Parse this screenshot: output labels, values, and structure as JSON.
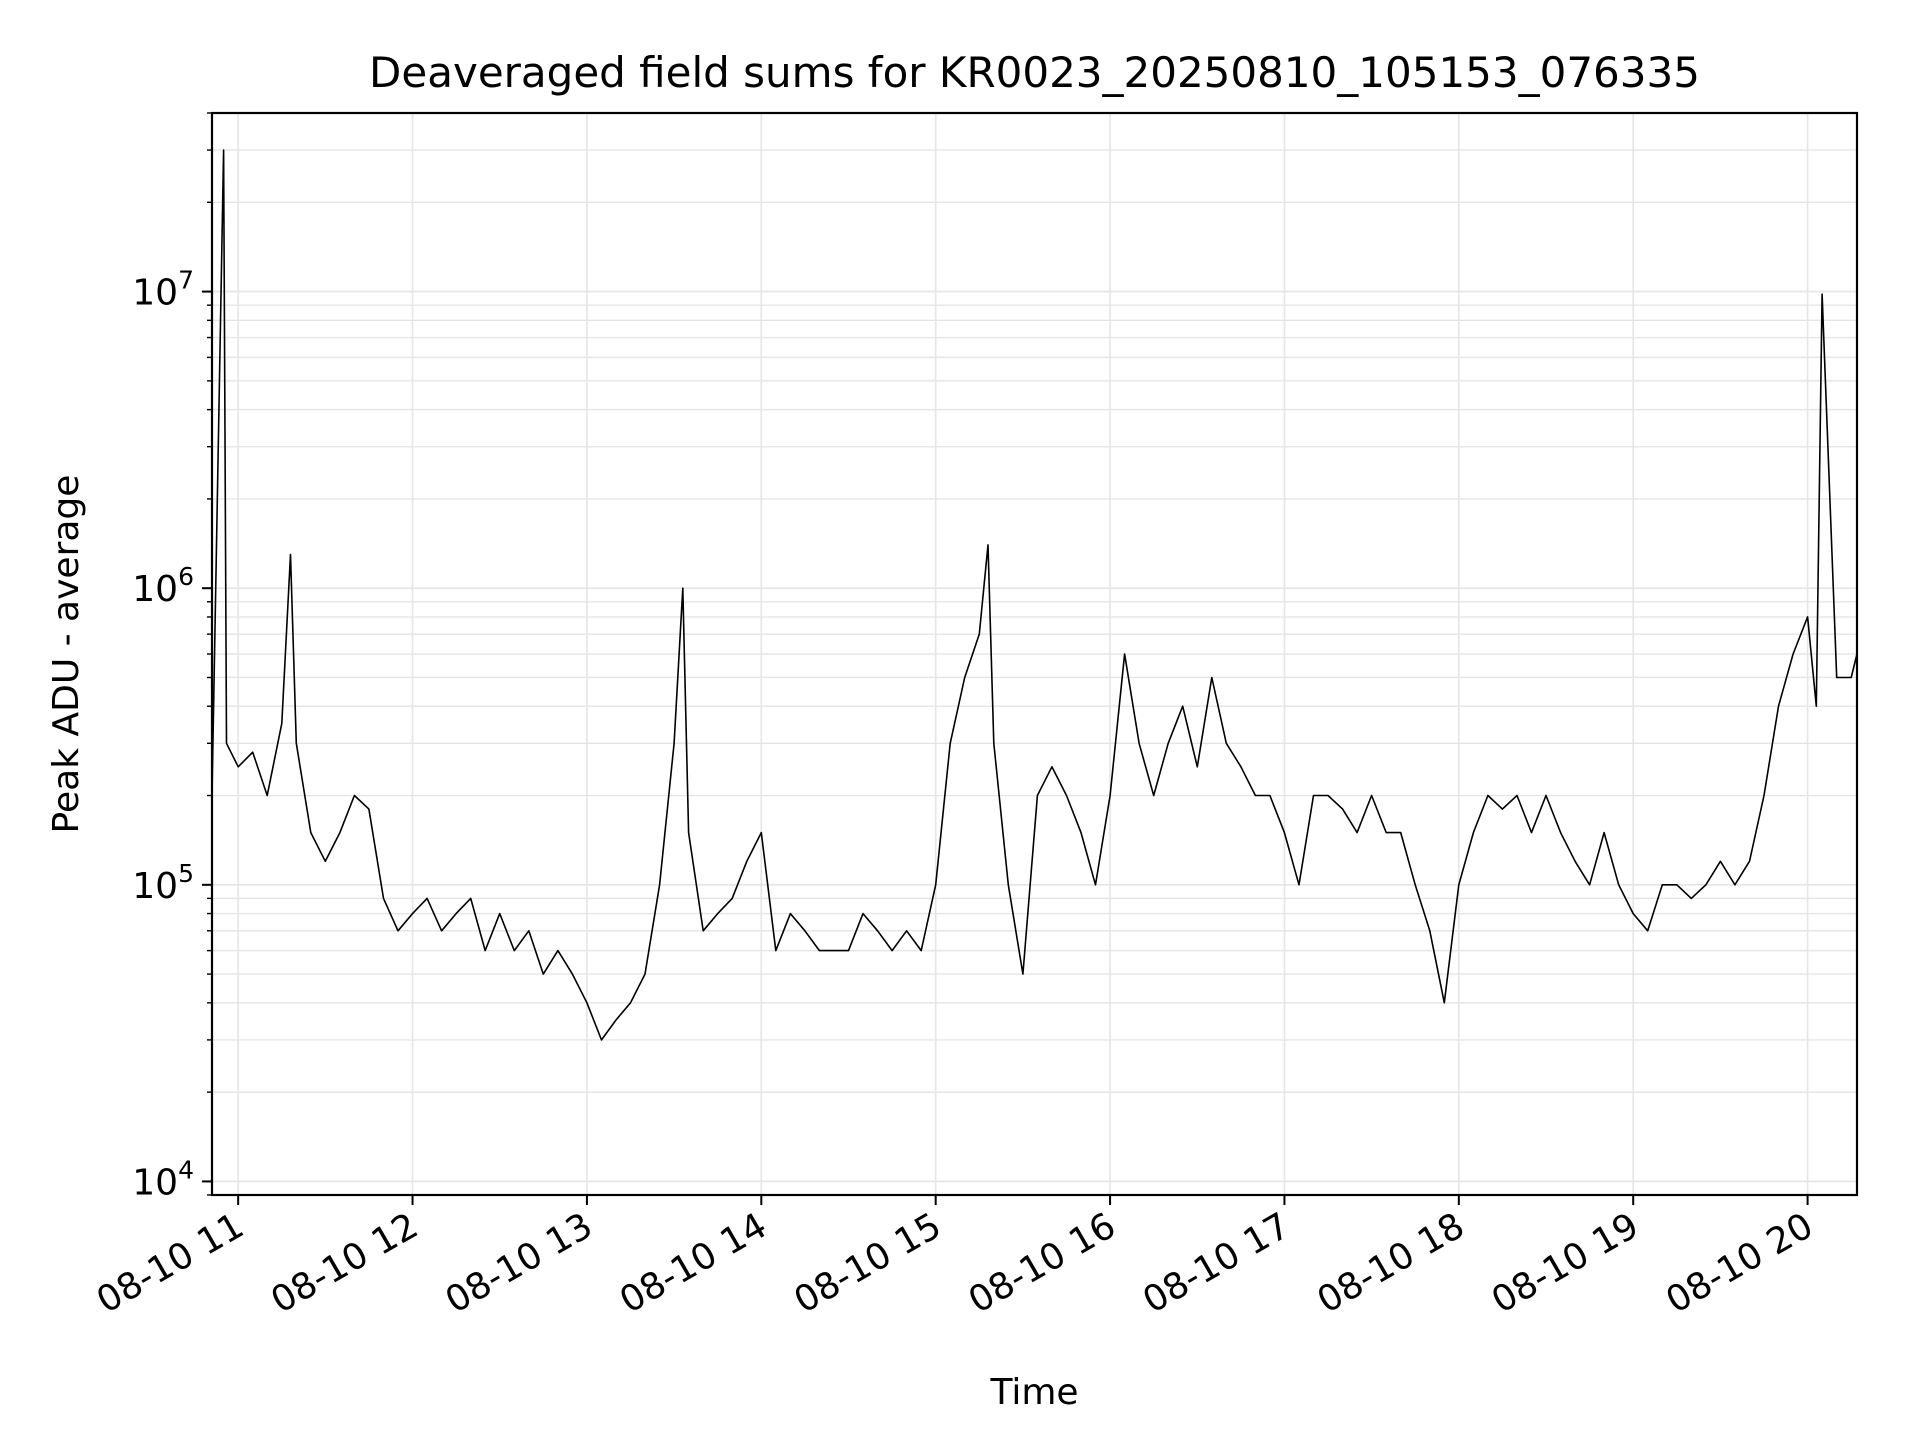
{
  "chart_data": {
    "type": "line",
    "title": "Deaveraged field sums for KR0023_20250810_105153_076335",
    "xlabel": "Time",
    "ylabel": "Peak ADU - average",
    "xlim": [
      "2025-08-10 10:51",
      "2025-08-10 20:17"
    ],
    "xticks": [
      "08-10 11",
      "08-10 12",
      "08-10 13",
      "08-10 14",
      "08-10 15",
      "08-10 16",
      "08-10 17",
      "08-10 18",
      "08-10 19",
      "08-10 20"
    ],
    "yscale": "log",
    "ylim": [
      9000,
      40000000
    ],
    "yticks": [
      {
        "base": "10",
        "exp": "4",
        "value": 10000
      },
      {
        "base": "10",
        "exp": "5",
        "value": 100000
      },
      {
        "base": "10",
        "exp": "6",
        "value": 1000000
      },
      {
        "base": "10",
        "exp": "7",
        "value": 10000000
      }
    ],
    "grid": true,
    "line_color": "#000000",
    "grid_color": "#e5e5e5",
    "series": [
      {
        "x": [
          "2025-08-10 10:51",
          "2025-08-10 10:55",
          "2025-08-10 10:56",
          "2025-08-10 11:00",
          "2025-08-10 11:05",
          "2025-08-10 11:10",
          "2025-08-10 11:15",
          "2025-08-10 11:18",
          "2025-08-10 11:20",
          "2025-08-10 11:25",
          "2025-08-10 11:30",
          "2025-08-10 11:35",
          "2025-08-10 11:40",
          "2025-08-10 11:45",
          "2025-08-10 11:50",
          "2025-08-10 11:55",
          "2025-08-10 12:00",
          "2025-08-10 12:05",
          "2025-08-10 12:10",
          "2025-08-10 12:15",
          "2025-08-10 12:20",
          "2025-08-10 12:25",
          "2025-08-10 12:30",
          "2025-08-10 12:35",
          "2025-08-10 12:40",
          "2025-08-10 12:45",
          "2025-08-10 12:50",
          "2025-08-10 12:55",
          "2025-08-10 13:00",
          "2025-08-10 13:05",
          "2025-08-10 13:10",
          "2025-08-10 13:15",
          "2025-08-10 13:20",
          "2025-08-10 13:25",
          "2025-08-10 13:30",
          "2025-08-10 13:33",
          "2025-08-10 13:35",
          "2025-08-10 13:40",
          "2025-08-10 13:45",
          "2025-08-10 13:50",
          "2025-08-10 13:55",
          "2025-08-10 14:00",
          "2025-08-10 14:05",
          "2025-08-10 14:10",
          "2025-08-10 14:15",
          "2025-08-10 14:20",
          "2025-08-10 14:25",
          "2025-08-10 14:30",
          "2025-08-10 14:35",
          "2025-08-10 14:40",
          "2025-08-10 14:45",
          "2025-08-10 14:50",
          "2025-08-10 14:55",
          "2025-08-10 15:00",
          "2025-08-10 15:05",
          "2025-08-10 15:10",
          "2025-08-10 15:15",
          "2025-08-10 15:18",
          "2025-08-10 15:20",
          "2025-08-10 15:25",
          "2025-08-10 15:30",
          "2025-08-10 15:35",
          "2025-08-10 15:40",
          "2025-08-10 15:45",
          "2025-08-10 15:50",
          "2025-08-10 15:55",
          "2025-08-10 16:00",
          "2025-08-10 16:05",
          "2025-08-10 16:10",
          "2025-08-10 16:15",
          "2025-08-10 16:20",
          "2025-08-10 16:25",
          "2025-08-10 16:30",
          "2025-08-10 16:35",
          "2025-08-10 16:40",
          "2025-08-10 16:45",
          "2025-08-10 16:50",
          "2025-08-10 16:55",
          "2025-08-10 17:00",
          "2025-08-10 17:05",
          "2025-08-10 17:10",
          "2025-08-10 17:15",
          "2025-08-10 17:20",
          "2025-08-10 17:25",
          "2025-08-10 17:30",
          "2025-08-10 17:35",
          "2025-08-10 17:40",
          "2025-08-10 17:45",
          "2025-08-10 17:50",
          "2025-08-10 17:55",
          "2025-08-10 18:00",
          "2025-08-10 18:05",
          "2025-08-10 18:10",
          "2025-08-10 18:15",
          "2025-08-10 18:20",
          "2025-08-10 18:25",
          "2025-08-10 18:30",
          "2025-08-10 18:35",
          "2025-08-10 18:40",
          "2025-08-10 18:45",
          "2025-08-10 18:50",
          "2025-08-10 18:55",
          "2025-08-10 19:00",
          "2025-08-10 19:05",
          "2025-08-10 19:10",
          "2025-08-10 19:15",
          "2025-08-10 19:20",
          "2025-08-10 19:25",
          "2025-08-10 19:30",
          "2025-08-10 19:35",
          "2025-08-10 19:40",
          "2025-08-10 19:45",
          "2025-08-10 19:50",
          "2025-08-10 19:55",
          "2025-08-10 20:00",
          "2025-08-10 20:03",
          "2025-08-10 20:05",
          "2025-08-10 20:10",
          "2025-08-10 20:15",
          "2025-08-10 20:17"
        ],
        "y": [
          200000,
          30000000,
          300000,
          250000,
          280000,
          200000,
          350000,
          1300000,
          300000,
          150000,
          120000,
          150000,
          200000,
          180000,
          90000,
          70000,
          80000,
          90000,
          70000,
          80000,
          90000,
          60000,
          80000,
          60000,
          70000,
          50000,
          60000,
          50000,
          40000,
          30000,
          35000,
          40000,
          50000,
          100000,
          300000,
          1000000,
          150000,
          70000,
          80000,
          90000,
          120000,
          150000,
          60000,
          80000,
          70000,
          60000,
          60000,
          60000,
          80000,
          70000,
          60000,
          70000,
          60000,
          100000,
          300000,
          500000,
          700000,
          1400000,
          300000,
          100000,
          50000,
          200000,
          250000,
          200000,
          150000,
          100000,
          200000,
          600000,
          300000,
          200000,
          300000,
          400000,
          250000,
          500000,
          300000,
          250000,
          200000,
          200000,
          150000,
          100000,
          200000,
          200000,
          180000,
          150000,
          200000,
          150000,
          150000,
          100000,
          70000,
          40000,
          100000,
          150000,
          200000,
          180000,
          200000,
          150000,
          200000,
          150000,
          120000,
          100000,
          150000,
          100000,
          80000,
          70000,
          100000,
          100000,
          90000,
          100000,
          120000,
          100000,
          120000,
          200000,
          400000,
          600000,
          800000,
          400000,
          9800000,
          500000,
          500000,
          600000
        ]
      }
    ]
  }
}
